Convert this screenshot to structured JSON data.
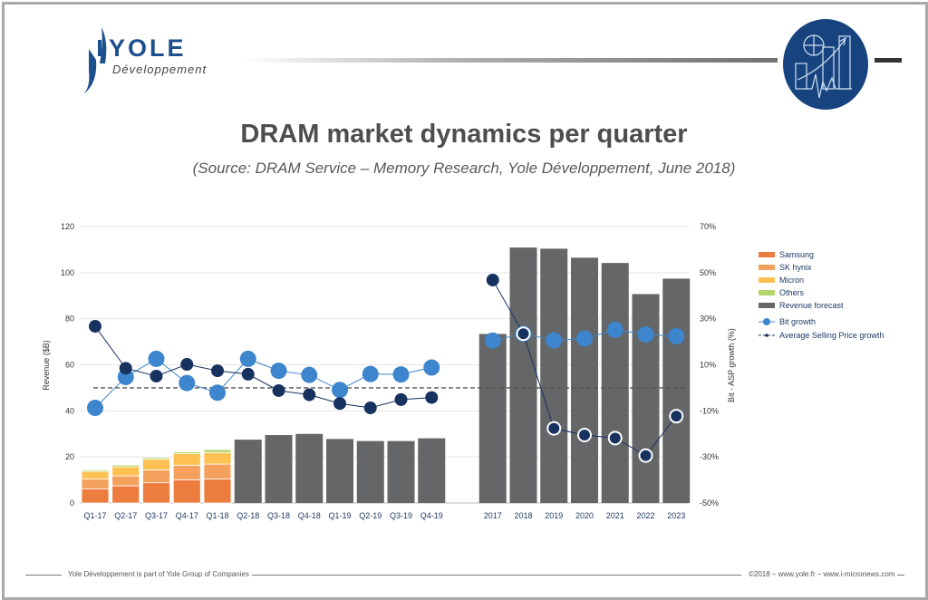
{
  "header": {
    "logo_text": "YOLE",
    "logo_subtext": "Développement"
  },
  "title": "DRAM market dynamics per quarter",
  "subtitle": "(Source: DRAM Service – Memory Research, Yole Développement, June 2018)",
  "footer": {
    "left": "Yole Développement is part of Yole Group of Companies",
    "right": "©2018 – www.yole.fr – www.i-micronews.com"
  },
  "colors": {
    "samsung": "#ed7d3f",
    "sk_hynix": "#f4a15d",
    "micron": "#fdc151",
    "others": "#b5d56a",
    "forecast": "#646667",
    "bit_growth": "#3d85cc",
    "asp_growth": "#17325f"
  },
  "chart_data": {
    "type": "bar",
    "title": "DRAM market dynamics per quarter",
    "ylabel": "Revenue ($B)",
    "y2label": "Bit - ASP growth (%)",
    "ylim": [
      0,
      120
    ],
    "yticks": [
      "0",
      "20",
      "40",
      "60",
      "80",
      "100",
      "120"
    ],
    "y2lim": [
      -50,
      70
    ],
    "y2ticks": [
      "-50%",
      "-30%",
      "-10%",
      "10%",
      "30%",
      "50%",
      "70%"
    ],
    "grid": true,
    "legend_placement": "right",
    "categories": [
      "Q1-17",
      "Q2-17",
      "Q3-17",
      "Q4-17",
      "Q1-18",
      "Q2-18",
      "Q3-18",
      "Q4-18",
      "Q1-19",
      "Q2-19",
      "Q3-19",
      "Q4-19",
      "2017",
      "2018",
      "2019",
      "2020",
      "2021",
      "2022",
      "2023"
    ],
    "series": [
      {
        "name": "Samsung",
        "kind": "stacked-bar",
        "values": [
          6.2,
          7.5,
          8.8,
          10.1,
          10.4,
          null,
          null,
          null,
          null,
          null,
          null,
          null,
          null,
          null,
          null,
          null,
          null,
          null,
          null
        ]
      },
      {
        "name": "SK hynix",
        "kind": "stacked-bar",
        "values": [
          4.2,
          4.3,
          5.6,
          6.3,
          6.5,
          null,
          null,
          null,
          null,
          null,
          null,
          null,
          null,
          null,
          null,
          null,
          null,
          null,
          null
        ]
      },
      {
        "name": "Micron",
        "kind": "stacked-bar",
        "values": [
          3.4,
          3.9,
          4.6,
          5.0,
          5.0,
          null,
          null,
          null,
          null,
          null,
          null,
          null,
          null,
          null,
          null,
          null,
          null,
          null,
          null
        ]
      },
      {
        "name": "Others",
        "kind": "stacked-bar",
        "values": [
          0.6,
          0.8,
          0.7,
          0.8,
          1.3,
          null,
          null,
          null,
          null,
          null,
          null,
          null,
          null,
          null,
          null,
          null,
          null,
          null,
          null
        ]
      },
      {
        "name": "Revenue forecast",
        "kind": "bar",
        "values": [
          null,
          null,
          null,
          null,
          null,
          27.5,
          29.5,
          30.0,
          27.8,
          26.9,
          26.9,
          28.1,
          73.4,
          110.9,
          110.4,
          106.5,
          104.2,
          90.7,
          97.4
        ]
      },
      {
        "name": "Bit growth",
        "kind": "line",
        "axis": "right",
        "unit": "%",
        "values": [
          -8.7,
          4.7,
          12.6,
          2.1,
          -2.1,
          12.6,
          7.4,
          5.6,
          -0.9,
          6.0,
          5.8,
          8.8,
          20.5,
          23.5,
          20.6,
          21.4,
          25.2,
          23.2,
          22.4
        ]
      },
      {
        "name": "Average Selling Price growth",
        "kind": "line",
        "axis": "right",
        "unit": "%",
        "values": [
          26.7,
          8.5,
          5.1,
          10.2,
          7.4,
          5.9,
          -1.2,
          -3.0,
          -6.8,
          -8.7,
          -5.1,
          -4.2,
          46.8,
          23.5,
          -17.6,
          -20.5,
          -21.8,
          -29.4,
          -12.3
        ]
      }
    ],
    "reference_line": {
      "axis": "right",
      "value": 0,
      "style": "dashed"
    }
  }
}
